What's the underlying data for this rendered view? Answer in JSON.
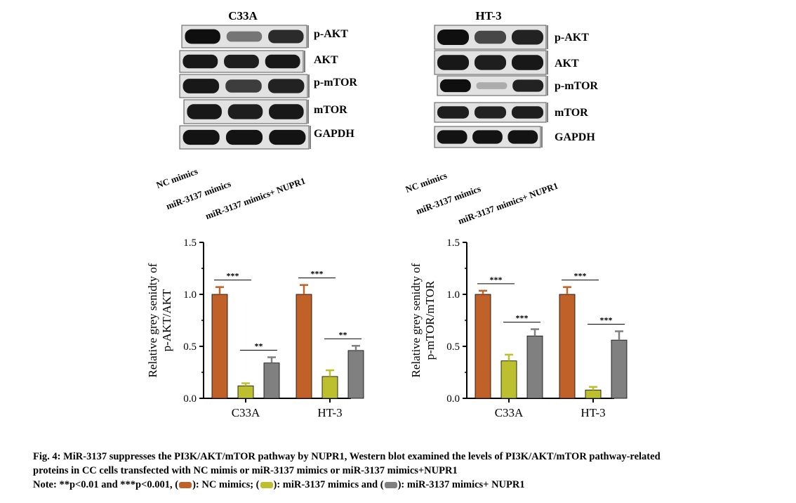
{
  "blots": [
    {
      "id": "c33a",
      "title": "C33A",
      "rows": [
        {
          "label": "p-AKT",
          "intensity": [
            1.0,
            0.45,
            0.85
          ]
        },
        {
          "label": "AKT",
          "intensity": [
            0.95,
            0.92,
            0.95
          ]
        },
        {
          "label": "p-mTOR",
          "intensity": [
            0.95,
            0.75,
            0.9
          ]
        },
        {
          "label": "mTOR",
          "intensity": [
            0.95,
            0.92,
            0.95
          ]
        },
        {
          "label": "GAPDH",
          "intensity": [
            0.98,
            0.98,
            0.98
          ]
        }
      ],
      "lanes": [
        "NC mimics",
        "miR-3137 mimics",
        "miR-3137 mimics+ NUPR1"
      ]
    },
    {
      "id": "ht3",
      "title": "HT-3",
      "rows": [
        {
          "label": "p-AKT",
          "intensity": [
            1.0,
            0.7,
            0.9
          ]
        },
        {
          "label": "AKT",
          "intensity": [
            0.95,
            0.92,
            0.95
          ]
        },
        {
          "label": "p-mTOR",
          "intensity": [
            1.0,
            0.15,
            0.9
          ]
        },
        {
          "label": "mTOR",
          "intensity": [
            0.92,
            0.9,
            0.92
          ]
        },
        {
          "label": "GAPDH",
          "intensity": [
            0.98,
            0.98,
            0.98
          ]
        }
      ],
      "lanes": [
        "NC mimics",
        "miR-3137 mimics",
        "miR-3137 mimics+ NUPR1"
      ]
    }
  ],
  "chart_data": [
    {
      "type": "bar",
      "ylabel": [
        "Relative grey senidty of",
        "p-AKT/AKT"
      ],
      "ylim": [
        0,
        1.5
      ],
      "yticks": [
        "0.0",
        "0.5",
        "1.0",
        "1.5"
      ],
      "categories": [
        "C33A",
        "HT-3"
      ],
      "series": [
        {
          "values": [
            1.0,
            1.0
          ],
          "errors": [
            0.07,
            0.09
          ],
          "color": "#c0612a"
        },
        {
          "values": [
            0.12,
            0.21
          ],
          "errors": [
            0.025,
            0.06
          ],
          "color": "#bcbf2e"
        },
        {
          "values": [
            0.34,
            0.46
          ],
          "errors": [
            0.055,
            0.045
          ],
          "color": "#808080"
        }
      ],
      "significance": [
        {
          "category": 0,
          "pair": [
            0,
            1
          ],
          "text": "***"
        },
        {
          "category": 0,
          "pair": [
            1,
            2
          ],
          "text": "**"
        },
        {
          "category": 1,
          "pair": [
            0,
            1
          ],
          "text": "***"
        },
        {
          "category": 1,
          "pair": [
            1,
            2
          ],
          "text": "**"
        }
      ]
    },
    {
      "type": "bar",
      "ylabel": [
        "Relative grey senidty of",
        "p-mTOR/mTOR"
      ],
      "ylim": [
        0,
        1.5
      ],
      "yticks": [
        "0.0",
        "0.5",
        "1.0",
        "1.5"
      ],
      "categories": [
        "C33A",
        "HT-3"
      ],
      "series": [
        {
          "values": [
            1.0,
            1.0
          ],
          "errors": [
            0.035,
            0.07
          ],
          "color": "#c0612a"
        },
        {
          "values": [
            0.36,
            0.08
          ],
          "errors": [
            0.06,
            0.03
          ],
          "color": "#bcbf2e"
        },
        {
          "values": [
            0.6,
            0.56
          ],
          "errors": [
            0.065,
            0.085
          ],
          "color": "#808080"
        }
      ],
      "significance": [
        {
          "category": 0,
          "pair": [
            0,
            1
          ],
          "text": "***"
        },
        {
          "category": 0,
          "pair": [
            1,
            2
          ],
          "text": "***"
        },
        {
          "category": 1,
          "pair": [
            0,
            1
          ],
          "text": "***"
        },
        {
          "category": 1,
          "pair": [
            1,
            2
          ],
          "text": "***"
        }
      ]
    }
  ],
  "caption": {
    "line1": "Fig. 4: MiR-3137 suppresses the PI3K/AKT/mTOR pathway by NUPR1, Western blot examined the levels of PI3K/AKT/mTOR pathway-related",
    "line2": "proteins in CC cells transfected with NC mimis or miR-3137 mimics or miR-3137 mimics+NUPR1",
    "note_prefix": "Note: **p<0.01 and ***p<0.001, (",
    "legend1": "): NC mimics; (",
    "legend2": "): miR-3137 mimics and (",
    "legend3": "): miR-3137 mimics+ NUPR1",
    "colors": [
      "#c0612a",
      "#bcbf2e",
      "#808080"
    ]
  }
}
